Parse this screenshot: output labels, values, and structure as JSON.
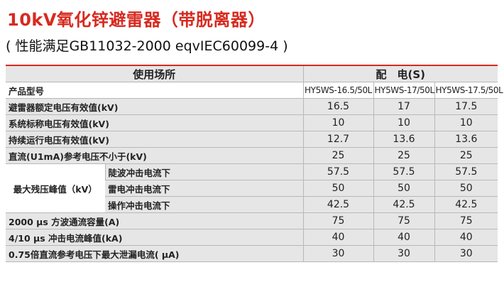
{
  "title": "10kV氧化锌避雷器（带脱离器）",
  "subtitle": "( 性能满足GB11032-2000 eqvIEC60099-4 )",
  "header": {
    "usage": "使用场所",
    "application": "配　电(S)"
  },
  "model_row": {
    "label": "产品型号",
    "models": [
      "HY5WS-16.5/50L",
      "HY5WS-17/50L",
      "HY5WS-17.5/50L"
    ]
  },
  "rows": [
    {
      "label": "避雷器额定电压有效值(kV)",
      "values": [
        "16.5",
        "17",
        "17.5"
      ]
    },
    {
      "label": "系统标称电压有效值(kV)",
      "values": [
        "10",
        "10",
        "10"
      ]
    },
    {
      "label": "持续运行电压有效值(kV)",
      "values": [
        "12.7",
        "13.6",
        "13.6"
      ]
    },
    {
      "label": "直流(U1mA)参考电压不小于(kV)",
      "values": [
        "25",
        "25",
        "25"
      ]
    }
  ],
  "residual": {
    "label": "最大残压峰值（kV）",
    "subrows": [
      {
        "label": "陡波冲击电流下",
        "values": [
          "57.5",
          "57.5",
          "57.5"
        ]
      },
      {
        "label": "雷电冲击电流下",
        "values": [
          "50",
          "50",
          "50"
        ]
      },
      {
        "label": "操作冲击电流下",
        "values": [
          "42.5",
          "42.5",
          "42.5"
        ]
      }
    ]
  },
  "rows_after": [
    {
      "label": "2000 μs 方波通流容量(A)",
      "values": [
        "75",
        "75",
        "75"
      ]
    },
    {
      "label": "4/10 μs 冲击电流峰值(kA)",
      "values": [
        "40",
        "40",
        "40"
      ]
    },
    {
      "label": "0.75倍直流参考电压下最大泄漏电流( μA)",
      "values": [
        "30",
        "30",
        "30"
      ]
    }
  ]
}
